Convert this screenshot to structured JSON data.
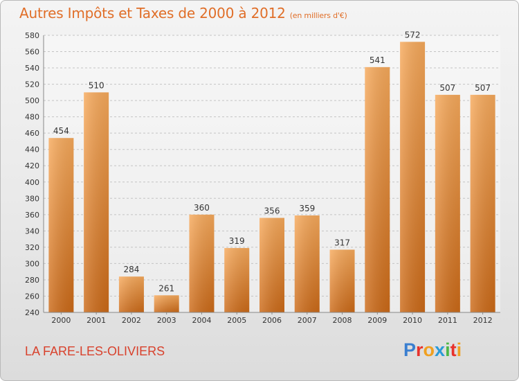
{
  "title": "Autres Impôts et Taxes de 2000 à 2012",
  "subtitle": "(en milliers d'€)",
  "commune": "LA FARE-LES-OLIVIERS",
  "logo": {
    "letters": [
      "P",
      "r",
      "o",
      "x",
      "i",
      "t",
      "i"
    ],
    "colors": [
      "#3a7fd0",
      "#e8322c",
      "#f0a020",
      "#2a9ad8",
      "#4cb848",
      "#e8322c",
      "#f0a020"
    ]
  },
  "colors": {
    "bar_top": "#f7aa5c",
    "bar_bottom": "#cc6a18",
    "title": "#e06e28",
    "commune": "#d8412c"
  },
  "chart_data": {
    "type": "bar",
    "title": "Autres Impôts et Taxes de 2000 à 2012",
    "subtitle": "(en milliers d'€)",
    "xlabel": "",
    "ylabel": "",
    "categories": [
      "2000",
      "2001",
      "2002",
      "2003",
      "2004",
      "2005",
      "2006",
      "2007",
      "2008",
      "2009",
      "2010",
      "2011",
      "2012"
    ],
    "values": [
      454,
      510,
      284,
      261,
      360,
      319,
      356,
      359,
      317,
      541,
      572,
      507,
      507
    ],
    "ylim": [
      240,
      580
    ],
    "yticks": [
      240,
      260,
      280,
      300,
      320,
      340,
      360,
      380,
      400,
      420,
      440,
      460,
      480,
      500,
      520,
      540,
      560,
      580
    ],
    "grid": "horizontal-dashed",
    "legend": "none"
  }
}
